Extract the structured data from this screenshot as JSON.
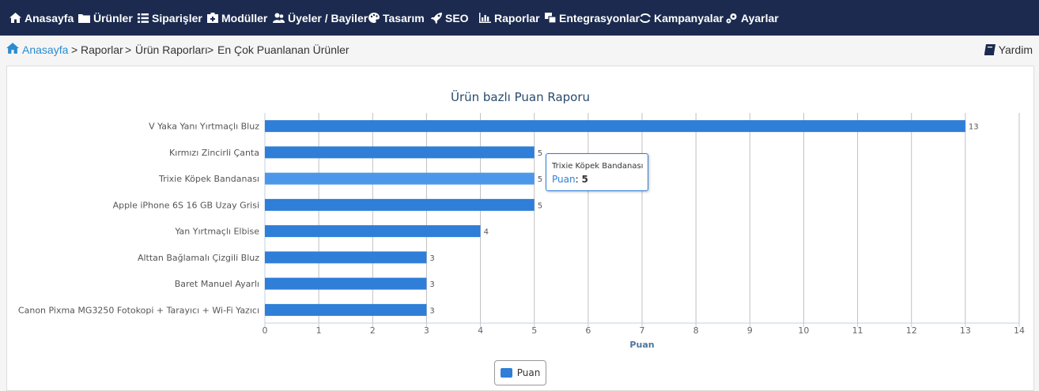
{
  "nav": {
    "items": [
      {
        "label": "Anasayfa",
        "icon": "home-icon"
      },
      {
        "label": "Ürünler",
        "icon": "folder-icon"
      },
      {
        "label": "Siparişler",
        "icon": "list-icon"
      },
      {
        "label": "Modüller",
        "icon": "module-icon"
      },
      {
        "label": "Üyeler / Bayiler",
        "icon": "users-icon"
      },
      {
        "label": "Tasarım",
        "icon": "palette-icon"
      },
      {
        "label": "SEO",
        "icon": "rocket-icon"
      },
      {
        "label": "Raporlar",
        "icon": "bar-chart-icon"
      },
      {
        "label": "Entegrasyonlar",
        "icon": "integration-icon"
      },
      {
        "label": "Kampanyalar",
        "icon": "campaign-icon"
      },
      {
        "label": "Ayarlar",
        "icon": "gear-icon"
      }
    ]
  },
  "breadcrumb": {
    "home": "Anasayfa",
    "sep1": ">",
    "item1": "Raporlar",
    "sep2": ">",
    "item2": "Ürün Raporları",
    "sep3": ">",
    "item3": "En Çok Puanlanan Ürünler"
  },
  "help": {
    "label": "Yardim"
  },
  "chart_data": {
    "type": "bar",
    "orientation": "horizontal",
    "title": "Ürün bazlı Puan Raporu",
    "categories": [
      "V Yaka Yanı Yırtmaçlı Bluz",
      "Kırmızı Zincirli Çanta",
      "Trixie Köpek Bandanası",
      "Apple iPhone 6S 16 GB Uzay Grisi",
      "Yan Yırtmaçlı Elbise",
      "Alttan Bağlamalı Çizgili Bluz",
      "Baret Manuel Ayarlı",
      "Canon Pixma MG3250 Fotokopi + Tarayıcı + Wi-Fi Yazıcı"
    ],
    "series": [
      {
        "name": "Puan",
        "values": [
          13,
          5,
          5,
          5,
          4,
          3,
          3,
          3
        ]
      }
    ],
    "xlabel": "Puan",
    "ylabel": "",
    "xlim": [
      0,
      14
    ],
    "x_ticks": [
      "0",
      "1",
      "2",
      "3",
      "4",
      "5",
      "6",
      "7",
      "8",
      "9",
      "10",
      "11",
      "12",
      "13",
      "14"
    ],
    "grid": true,
    "legend": "bottom-center",
    "highlighted_index": 2,
    "bar_color": "#2f7ed8",
    "highlight_color": "#4d97ea"
  },
  "tooltip": {
    "title": "Trixie Köpek Bandanası",
    "label": "Puan",
    "value": "5"
  },
  "legend": {
    "label": "Puan"
  }
}
